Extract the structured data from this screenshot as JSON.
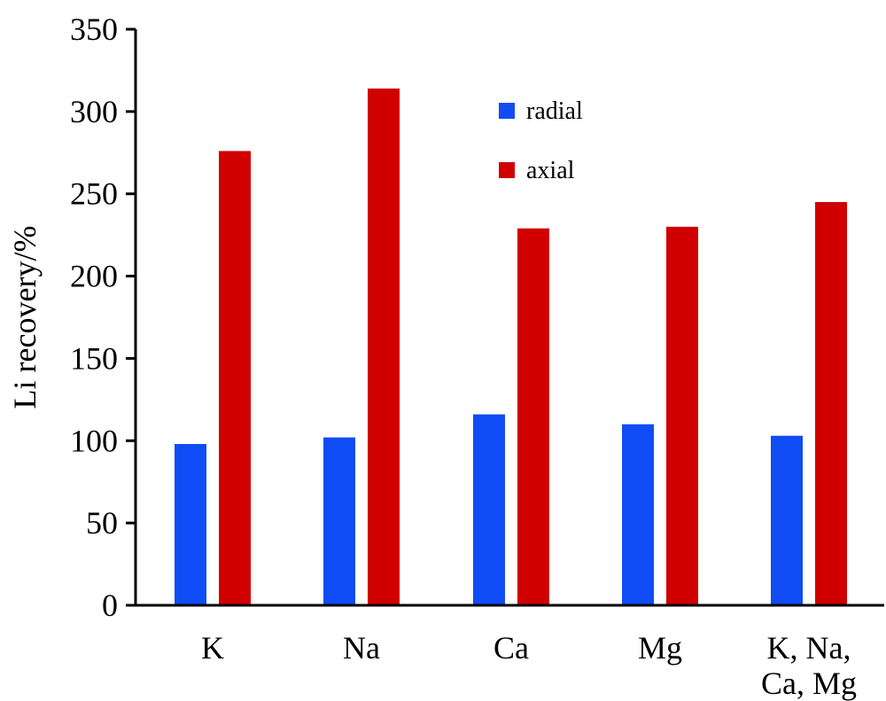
{
  "chart_data": {
    "type": "bar",
    "title": "",
    "xlabel": "",
    "ylabel": "Li recovery/%",
    "ylim": [
      0,
      350
    ],
    "yticks": [
      0,
      50,
      100,
      150,
      200,
      250,
      300,
      350
    ],
    "categories": [
      [
        "K"
      ],
      [
        "Na"
      ],
      [
        "Ca"
      ],
      [
        "Mg"
      ],
      [
        "K, Na,",
        "Ca, Mg"
      ]
    ],
    "series": [
      {
        "name": "radial",
        "color": "#0f4cf5",
        "values": [
          98,
          102,
          116,
          110,
          103
        ]
      },
      {
        "name": "axial",
        "color": "#d00000",
        "values": [
          276,
          314,
          229,
          230,
          245
        ]
      }
    ],
    "legend_position": "top-center",
    "grid": false
  }
}
